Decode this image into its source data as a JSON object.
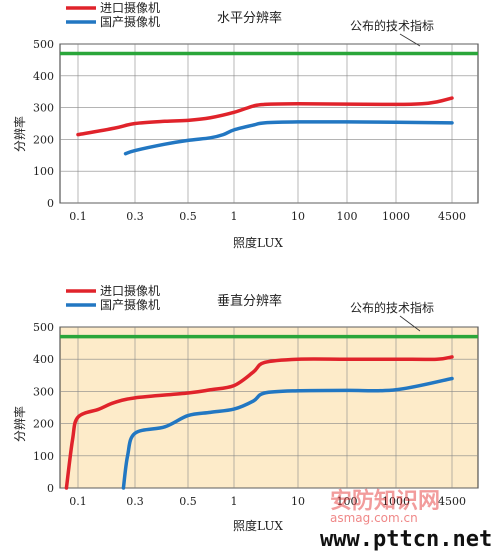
{
  "chart_data": [
    {
      "type": "line",
      "title": "水平分辨率",
      "xlabel": "照度LUX",
      "ylabel": "分辨率",
      "x_ticks": [
        "0.1",
        "0.3",
        "0.5",
        "1",
        "10",
        "100",
        "1000",
        "4500"
      ],
      "ylim": [
        0,
        500
      ],
      "y_ticks": [
        "0",
        "100",
        "200",
        "300",
        "400",
        "500"
      ],
      "grid": true,
      "legend_position": "top-left",
      "reference_line": {
        "label": "公布的技术指标",
        "value": 470,
        "color": "#2aa63a"
      },
      "series": [
        {
          "name": "进口摄像机",
          "color": "#e0232b",
          "x": [
            0.1,
            0.2,
            0.3,
            0.4,
            0.5,
            0.7,
            1,
            2,
            3,
            10,
            100,
            1000,
            2000,
            3000,
            4500
          ],
          "y": [
            215,
            235,
            250,
            257,
            260,
            268,
            285,
            305,
            310,
            312,
            311,
            310,
            312,
            318,
            330
          ]
        },
        {
          "name": "国产摄像机",
          "color": "#2277c2",
          "x": [
            0.25,
            0.3,
            0.4,
            0.5,
            0.7,
            0.85,
            1,
            2,
            3,
            10,
            100,
            1000,
            4500
          ],
          "y": [
            155,
            165,
            185,
            197,
            205,
            215,
            230,
            245,
            252,
            255,
            255,
            254,
            252
          ]
        }
      ]
    },
    {
      "type": "line",
      "title": "垂直分辨率",
      "xlabel": "照度LUX",
      "ylabel": "分辨率",
      "x_ticks": [
        "0.1",
        "0.3",
        "0.5",
        "1",
        "10",
        "100",
        "1000",
        "4500"
      ],
      "ylim": [
        0,
        500
      ],
      "y_ticks": [
        "0",
        "100",
        "200",
        "300",
        "400",
        "500"
      ],
      "grid": true,
      "plot_background": "#fdebc9",
      "legend_position": "top-left",
      "reference_line": {
        "label": "公布的技术指标",
        "value": 470,
        "color": "#2aa63a"
      },
      "series": [
        {
          "name": "进口摄像机",
          "color": "#e0232b",
          "x": [
            0.08,
            0.09,
            0.1,
            0.15,
            0.2,
            0.3,
            0.5,
            0.7,
            1,
            2,
            3,
            10,
            100,
            1000,
            3000,
            4500
          ],
          "y": [
            0,
            150,
            220,
            245,
            265,
            280,
            295,
            305,
            318,
            360,
            390,
            400,
            400,
            400,
            400,
            407
          ]
        },
        {
          "name": "国产摄像机",
          "color": "#2277c2",
          "x": [
            0.24,
            0.26,
            0.3,
            0.4,
            0.5,
            0.7,
            1,
            2,
            3,
            10,
            100,
            1000,
            4500
          ],
          "y": [
            0,
            100,
            170,
            190,
            225,
            235,
            245,
            270,
            295,
            302,
            303,
            305,
            340
          ]
        }
      ]
    }
  ],
  "watermark": {
    "site_cn": "安防知识网",
    "site_sub": "asmag.com.cn",
    "url": "www.pttcn.net"
  }
}
